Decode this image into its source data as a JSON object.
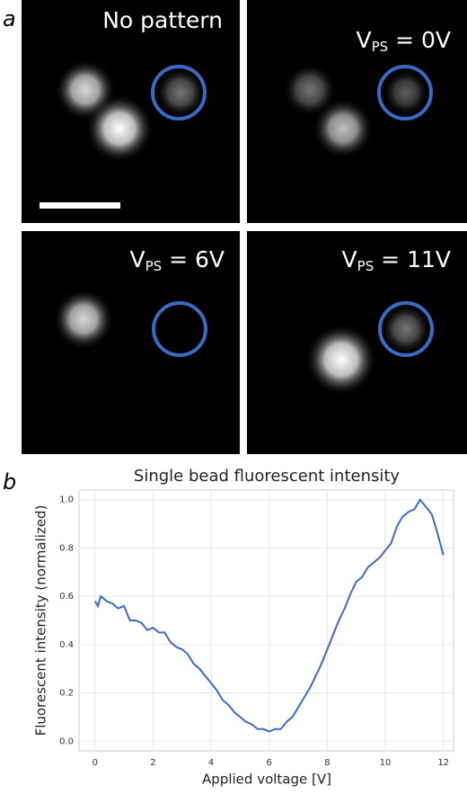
{
  "panel_labels": [
    "a",
    "b"
  ],
  "images": [
    {
      "label": {
        "main": "No pattern"
      }
    },
    {
      "label": {
        "main": "V",
        "sub": "PS",
        "rest": " = 0V"
      }
    },
    {
      "label": {
        "main": "V",
        "sub": "PS",
        "rest": " = 6V"
      }
    },
    {
      "label": {
        "main": "V",
        "sub": "PS",
        "rest": " = 11V"
      }
    }
  ],
  "chart_data": {
    "type": "line",
    "title": "Single bead fluorescent intensity",
    "xlabel": "Applied voltage [V]",
    "ylabel": "Fluorescent intensity (normalized)",
    "color": "#3a6bc4",
    "grid": true,
    "x": [
      0,
      0.1,
      0.2,
      0.4,
      0.6,
      0.8,
      1.0,
      1.2,
      1.4,
      1.6,
      1.8,
      2.0,
      2.2,
      2.4,
      2.6,
      2.8,
      3.0,
      3.2,
      3.4,
      3.6,
      3.8,
      4.0,
      4.2,
      4.4,
      4.6,
      4.8,
      5.0,
      5.2,
      5.4,
      5.6,
      5.8,
      6.0,
      6.2,
      6.4,
      6.6,
      6.8,
      7.0,
      7.2,
      7.4,
      7.6,
      7.8,
      8.0,
      8.2,
      8.4,
      8.6,
      8.8,
      9.0,
      9.2,
      9.4,
      9.6,
      9.8,
      10.0,
      10.2,
      10.4,
      10.6,
      10.8,
      11.0,
      11.2,
      11.4,
      11.6,
      11.8,
      12.0
    ],
    "values": [
      0.58,
      0.56,
      0.6,
      0.58,
      0.57,
      0.55,
      0.56,
      0.5,
      0.5,
      0.49,
      0.46,
      0.47,
      0.45,
      0.45,
      0.41,
      0.39,
      0.38,
      0.36,
      0.32,
      0.3,
      0.27,
      0.24,
      0.21,
      0.17,
      0.15,
      0.12,
      0.1,
      0.08,
      0.07,
      0.05,
      0.05,
      0.04,
      0.05,
      0.05,
      0.08,
      0.1,
      0.14,
      0.18,
      0.22,
      0.27,
      0.32,
      0.38,
      0.44,
      0.5,
      0.55,
      0.61,
      0.66,
      0.68,
      0.72,
      0.74,
      0.76,
      0.79,
      0.82,
      0.89,
      0.93,
      0.95,
      0.96,
      1.0,
      0.97,
      0.94,
      0.86,
      0.77
    ],
    "xlim": [
      -0.55,
      12.35
    ],
    "ylim": [
      -0.04,
      1.04
    ],
    "xticks": [
      0,
      2,
      4,
      6,
      8,
      10,
      12
    ],
    "yticks": [
      {
        "value": 0,
        "label": "0.0"
      },
      {
        "value": 0.2,
        "label": "0.2"
      },
      {
        "value": 0.4,
        "label": "0.4"
      },
      {
        "value": 0.6,
        "label": "0.6"
      },
      {
        "value": 0.8,
        "label": "0.8"
      },
      {
        "value": 1.0,
        "label": "1.0"
      }
    ]
  }
}
